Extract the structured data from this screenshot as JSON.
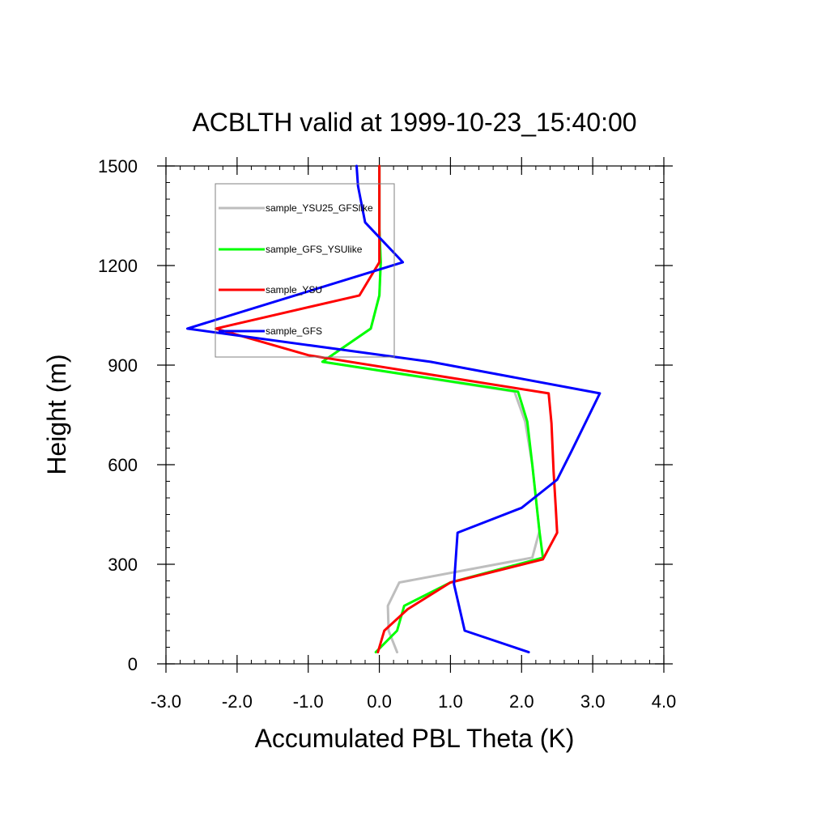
{
  "chart_data": {
    "type": "line",
    "title": "ACBLTH valid at 1999-10-23_15:40:00",
    "xlabel": "Accumulated PBL Theta (K)",
    "ylabel": "Height (m)",
    "xlim": [
      -3.0,
      4.0
    ],
    "ylim": [
      0,
      1500
    ],
    "x_ticks": [
      -3.0,
      -2.0,
      -1.0,
      0.0,
      1.0,
      2.0,
      3.0,
      4.0
    ],
    "x_tick_labels": [
      "-3.0",
      "-2.0",
      "-1.0",
      "0.0",
      "1.0",
      "2.0",
      "3.0",
      "4.0"
    ],
    "y_ticks": [
      0,
      300,
      600,
      900,
      1200,
      1500
    ],
    "y_tick_labels": [
      "0",
      "300",
      "600",
      "900",
      "1200",
      "1500"
    ],
    "grid": false,
    "legend_position": "top-left",
    "series": [
      {
        "name": "sample_YSU25_GFSlike",
        "color": "#bebebe",
        "points": [
          [
            0.25,
            35
          ],
          [
            0.13,
            100
          ],
          [
            0.12,
            175
          ],
          [
            0.28,
            245
          ],
          [
            2.15,
            320
          ],
          [
            2.25,
            400
          ],
          [
            2.2,
            500
          ],
          [
            2.15,
            600
          ],
          [
            2.05,
            730
          ],
          [
            1.9,
            820
          ],
          [
            -0.8,
            910
          ],
          [
            -0.12,
            1010
          ],
          [
            0.0,
            1110
          ],
          [
            0.02,
            1210
          ],
          [
            0.0,
            1310
          ],
          [
            0.0,
            1500
          ]
        ]
      },
      {
        "name": "sample_GFS_YSUlike",
        "color": "#00ff00",
        "points": [
          [
            -0.05,
            35
          ],
          [
            0.25,
            100
          ],
          [
            0.35,
            175
          ],
          [
            1.0,
            245
          ],
          [
            2.3,
            320
          ],
          [
            2.25,
            400
          ],
          [
            2.2,
            500
          ],
          [
            2.15,
            600
          ],
          [
            2.08,
            730
          ],
          [
            1.95,
            820
          ],
          [
            -0.8,
            910
          ],
          [
            -0.12,
            1010
          ],
          [
            0.0,
            1110
          ],
          [
            0.02,
            1210
          ],
          [
            0.0,
            1310
          ],
          [
            0.0,
            1500
          ]
        ]
      },
      {
        "name": "sample_YSU",
        "color": "#ff0000",
        "points": [
          [
            -0.02,
            35
          ],
          [
            0.07,
            100
          ],
          [
            0.4,
            165
          ],
          [
            1.0,
            245
          ],
          [
            2.3,
            315
          ],
          [
            2.5,
            395
          ],
          [
            2.48,
            470
          ],
          [
            2.45,
            580
          ],
          [
            2.42,
            725
          ],
          [
            2.38,
            815
          ],
          [
            -1.0,
            930
          ],
          [
            -2.3,
            1010
          ],
          [
            -0.28,
            1110
          ],
          [
            0.0,
            1210
          ],
          [
            0.0,
            1310
          ],
          [
            0.0,
            1500
          ]
        ]
      },
      {
        "name": "sample_GFS",
        "color": "#0000ff",
        "points": [
          [
            2.1,
            35
          ],
          [
            1.2,
            100
          ],
          [
            1.05,
            240
          ],
          [
            1.1,
            395
          ],
          [
            2.0,
            470
          ],
          [
            2.5,
            555
          ],
          [
            2.7,
            640
          ],
          [
            3.1,
            815
          ],
          [
            0.72,
            910
          ],
          [
            -2.7,
            1010
          ],
          [
            0.33,
            1210
          ],
          [
            -0.2,
            1330
          ],
          [
            -0.3,
            1440
          ],
          [
            -0.32,
            1500
          ]
        ]
      }
    ]
  }
}
